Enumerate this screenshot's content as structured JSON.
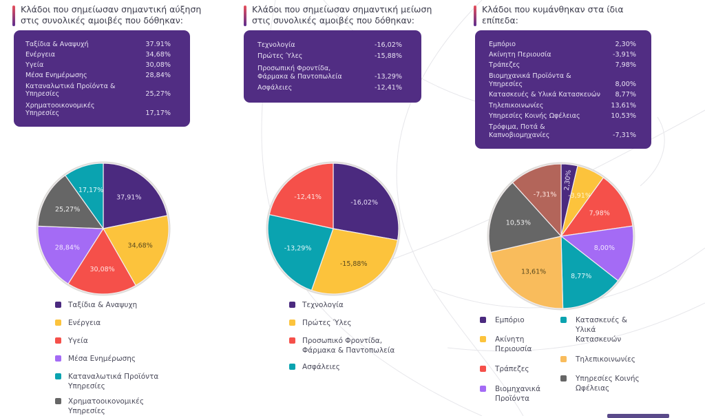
{
  "colors": {
    "purple": "#4b2a7f",
    "yellow": "#fcc33c",
    "red": "#f5504a",
    "lilac": "#a46bf5",
    "teal": "#0aa3b0",
    "gray": "#666666",
    "orange": "#f9bc5c",
    "brown": "#b3655a",
    "box_bg": "#512d83"
  },
  "panels": [
    {
      "title_line1": "Κλάδοι που σημείωσαν σημαντική αύξηση",
      "title_line2": "στις συνολικές αμοιβές που δόθηκαν:",
      "rows": [
        {
          "label1": "Ταξίδια & Αναψυχή",
          "label2": "",
          "value": "37.91%"
        },
        {
          "label1": "Ενέργεια",
          "label2": "",
          "value": "34,68%"
        },
        {
          "label1": "Υγεία",
          "label2": "",
          "value": "30,08%"
        },
        {
          "label1": "Μέσα Ενημέρωσης",
          "label2": "",
          "value": "28,84%"
        },
        {
          "label1": "Καταναλωτικά Προϊόντα &",
          "label2": "Υπηρεσίες",
          "value": "25,27%"
        },
        {
          "label1": "Χρηματοοικονομικές",
          "label2": "Υπηρεσίες",
          "value": "17,17%"
        }
      ],
      "legend": [
        {
          "label1": "Ταξίδια & Αναψυχη",
          "label2": ""
        },
        {
          "label1": "Ενέργεια",
          "label2": ""
        },
        {
          "label1": "Υγεία",
          "label2": ""
        },
        {
          "label1": "Μέσα Ενημέρωσης",
          "label2": ""
        },
        {
          "label1": "Καταναλωτικά Προϊόντα",
          "label2": "Υπηρεσίες"
        },
        {
          "label1": "Χρηματοοικονομικές",
          "label2": "Υπηρεσίες"
        }
      ]
    },
    {
      "title_line1": "Κλάδοι που σημείωσαν σημαντική μείωση",
      "title_line2": "στις συνολικές αμοιβές που δόθηκαν:",
      "rows": [
        {
          "label1": "Τεχνολογία",
          "label2": "",
          "value": "-16,02%"
        },
        {
          "label1": "Πρώτες Ύλες",
          "label2": "",
          "value": "-15,88%"
        },
        {
          "label1": "Προσωπική Φροντίδα,",
          "label2": "Φάρμακα & Παντοπωλεία",
          "value": "-13,29%"
        },
        {
          "label1": "Ασφάλειες",
          "label2": "",
          "value": "-12,41%"
        }
      ],
      "legend": [
        {
          "label1": "Τεχνολογία",
          "label2": ""
        },
        {
          "label1": "Πρώτες Ύλες",
          "label2": ""
        },
        {
          "label1": "Προσωπικό Φροντίδα,",
          "label2": "Φάρμακα & Παντοπωλεία"
        },
        {
          "label1": "Ασφάλειες",
          "label2": ""
        }
      ]
    },
    {
      "title_line1": "Κλάδοι που κυμάνθηκαν στα ίδια",
      "title_line2": "επίπεδα:",
      "rows": [
        {
          "label1": "Εμπόριο",
          "label2": "",
          "value": "2,30%"
        },
        {
          "label1": "Ακίνητη Περιουσία",
          "label2": "",
          "value": "-3,91%"
        },
        {
          "label1": "Τράπεζες",
          "label2": "",
          "value": "7,98%"
        },
        {
          "label1": "Βιομηχανικά Προϊόντα &",
          "label2": "Υπηρεσίες",
          "value": "8,00%"
        },
        {
          "label1": "Κατασκευές & Υλικά Κατασκευών",
          "label2": "",
          "value": "8,77%"
        },
        {
          "label1": "Τηλεπικοινωνίες",
          "label2": "",
          "value": "13,61%"
        },
        {
          "label1": "Υπηρεσίες Κοινής Ωφέλειας",
          "label2": "",
          "value": "10,53%"
        },
        {
          "label1": "Τρόφιμα, Ποτά &",
          "label2": "Καπνοβιομηχανίες",
          "value": "-7,31%"
        }
      ],
      "legend": [
        {
          "label1": "Εμπόριο",
          "label2": "",
          "label3": ""
        },
        {
          "label1": "Ακίνητη",
          "label2": "Περιουσία",
          "label3": ""
        },
        {
          "label1": "Τράπεζες",
          "label2": "",
          "label3": ""
        },
        {
          "label1": "Βιομηχανικά",
          "label2": "Προϊόντα",
          "label3": ""
        },
        {
          "label1": "Κατασκευές &",
          "label2": "Υλικά",
          "label3": "Κατασκευών"
        },
        {
          "label1": "Τηλεπικοινωνίες",
          "label2": "",
          "label3": ""
        },
        {
          "label1": "Υπηρεσίες Κοινής",
          "label2": "Ωφέλειας",
          "label3": ""
        }
      ]
    }
  ],
  "chart_data": [
    {
      "type": "pie",
      "title": "Κλάδοι που σημείωσαν σημαντική αύξηση στις συνολικές αμοιβές που δόθηκαν",
      "categories": [
        "Ταξίδια & Αναψυχή",
        "Ενέργεια",
        "Υγεία",
        "Μέσα Ενημέρωσης",
        "Καταναλωτικά Προϊόντα & Υπηρεσίες",
        "Χρηματοοικονομικές Υπηρεσίες"
      ],
      "values": [
        37.91,
        34.68,
        30.08,
        28.84,
        25.27,
        17.17
      ],
      "data_labels": [
        "37,91%",
        "34,68%",
        "30,08%",
        "28,84%",
        "25,27%",
        "17,17%"
      ],
      "slice_colors": [
        "purple",
        "yellow",
        "red",
        "lilac",
        "gray",
        "teal"
      ],
      "legend_colors": [
        "purple",
        "yellow",
        "red",
        "lilac",
        "teal",
        "gray"
      ],
      "label_colors": [
        "#e6ddf5",
        "#5a4a1e",
        "#ffe3e0",
        "#f1e6ff",
        "#eeeeee",
        "#e0f7f9"
      ],
      "legend_position": "bottom"
    },
    {
      "type": "pie",
      "title": "Κλάδοι που σημείωσαν σημαντική μείωση στις συνολικές αμοιβές που δόθηκαν",
      "categories": [
        "Τεχνολογία",
        "Πρώτες Ύλες",
        "Προσωπική Φροντίδα, Φάρμακα & Παντοπωλεία",
        "Ασφάλειες"
      ],
      "values": [
        -16.02,
        -15.88,
        -13.29,
        -12.41
      ],
      "data_labels": [
        "-16,02%",
        "-15,88%",
        "-13,29%",
        "-12,41%"
      ],
      "slice_colors": [
        "purple",
        "yellow",
        "teal",
        "red"
      ],
      "legend_colors": [
        "purple",
        "yellow",
        "red",
        "teal"
      ],
      "label_colors": [
        "#e6ddf5",
        "#5a4a1e",
        "#e0f7f9",
        "#ffe3e0"
      ],
      "legend_position": "bottom"
    },
    {
      "type": "pie",
      "title": "Κλάδοι που κυμάνθηκαν στα ίδια επίπεδα",
      "categories": [
        "Εμπόριο",
        "Ακίνητη Περιουσία",
        "Τράπεζες",
        "Βιομηχανικά Προϊόντα & Υπηρεσίες",
        "Κατασκευές & Υλικά Κατασκευών",
        "Τηλεπικοινωνίες",
        "Υπηρεσίες Κοινής Ωφέλειας",
        "Τρόφιμα, Ποτά & Καπνοβιομηχανίες"
      ],
      "values": [
        2.3,
        -3.91,
        7.98,
        8.0,
        8.77,
        13.61,
        10.53,
        -7.31
      ],
      "data_labels": [
        "2,30%",
        "-3,91%",
        "7,98%",
        "8,00%",
        "8,77%",
        "13,61%",
        "10,53%",
        "-7,31%"
      ],
      "slice_colors": [
        "purple",
        "yellow",
        "red",
        "lilac",
        "teal",
        "orange",
        "gray",
        "brown"
      ],
      "legend_colors": [
        "purple",
        "yellow",
        "red",
        "lilac",
        "teal",
        "orange",
        "gray"
      ],
      "label_colors": [
        "#e6ddf5",
        "#fff3c8",
        "#ffe3e0",
        "#f1e6ff",
        "#e0f7f9",
        "#5a4a1e",
        "#eeeeee",
        "#ffe6e0"
      ],
      "legend_position": "bottom"
    }
  ]
}
